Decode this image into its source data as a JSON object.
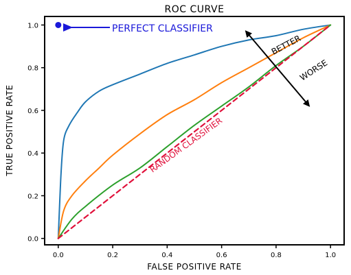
{
  "chart_data": {
    "type": "line",
    "title": "ROC CURVE",
    "xlabel": "FALSE POSITIVE RATE",
    "ylabel": "TRUE POSITIVE RATE",
    "xlim": [
      -0.05,
      1.05
    ],
    "ylim": [
      -0.03,
      1.04
    ],
    "x_ticks": [
      "0.0",
      "0.2",
      "0.4",
      "0.6",
      "0.8",
      "1.0"
    ],
    "y_ticks": [
      "0.0",
      "0.2",
      "0.4",
      "0.6",
      "0.8",
      "1.0"
    ],
    "grid": false,
    "series": [
      {
        "color": "#1f77b4",
        "x": [
          0,
          0.01,
          0.02,
          0.04,
          0.07,
          0.1,
          0.15,
          0.2,
          0.3,
          0.4,
          0.5,
          0.6,
          0.7,
          0.8,
          0.9,
          1.0
        ],
        "y": [
          0,
          0.3,
          0.46,
          0.53,
          0.59,
          0.64,
          0.69,
          0.72,
          0.77,
          0.82,
          0.86,
          0.9,
          0.93,
          0.95,
          0.98,
          1.0
        ]
      },
      {
        "color": "#ff7f0e",
        "x": [
          0,
          0.02,
          0.05,
          0.1,
          0.15,
          0.2,
          0.3,
          0.4,
          0.5,
          0.6,
          0.7,
          0.8,
          0.9,
          1.0
        ],
        "y": [
          0,
          0.13,
          0.2,
          0.27,
          0.33,
          0.39,
          0.49,
          0.58,
          0.65,
          0.73,
          0.8,
          0.87,
          0.94,
          1.0
        ]
      },
      {
        "color": "#2ca02c",
        "x": [
          0,
          0.05,
          0.1,
          0.2,
          0.3,
          0.4,
          0.5,
          0.6,
          0.7,
          0.8,
          0.9,
          1.0
        ],
        "y": [
          0,
          0.09,
          0.15,
          0.25,
          0.33,
          0.43,
          0.53,
          0.62,
          0.71,
          0.81,
          0.9,
          1.0
        ]
      },
      {
        "color": "#e0103a",
        "dashed": true,
        "x": [
          0,
          1.0
        ],
        "y": [
          0,
          1.0
        ]
      }
    ],
    "perfect_point": {
      "x": 0.0,
      "y": 1.0,
      "color": "#1a18d9"
    },
    "annotations": {
      "perfect_classifier": {
        "text": "PERFECT CLASSIFIER",
        "color": "#1a18d9"
      },
      "random_classifier": {
        "text": "RANDOM CLASSIFIER",
        "color": "#e0103a"
      },
      "better": "BETTER",
      "worse": "WORSE"
    }
  }
}
